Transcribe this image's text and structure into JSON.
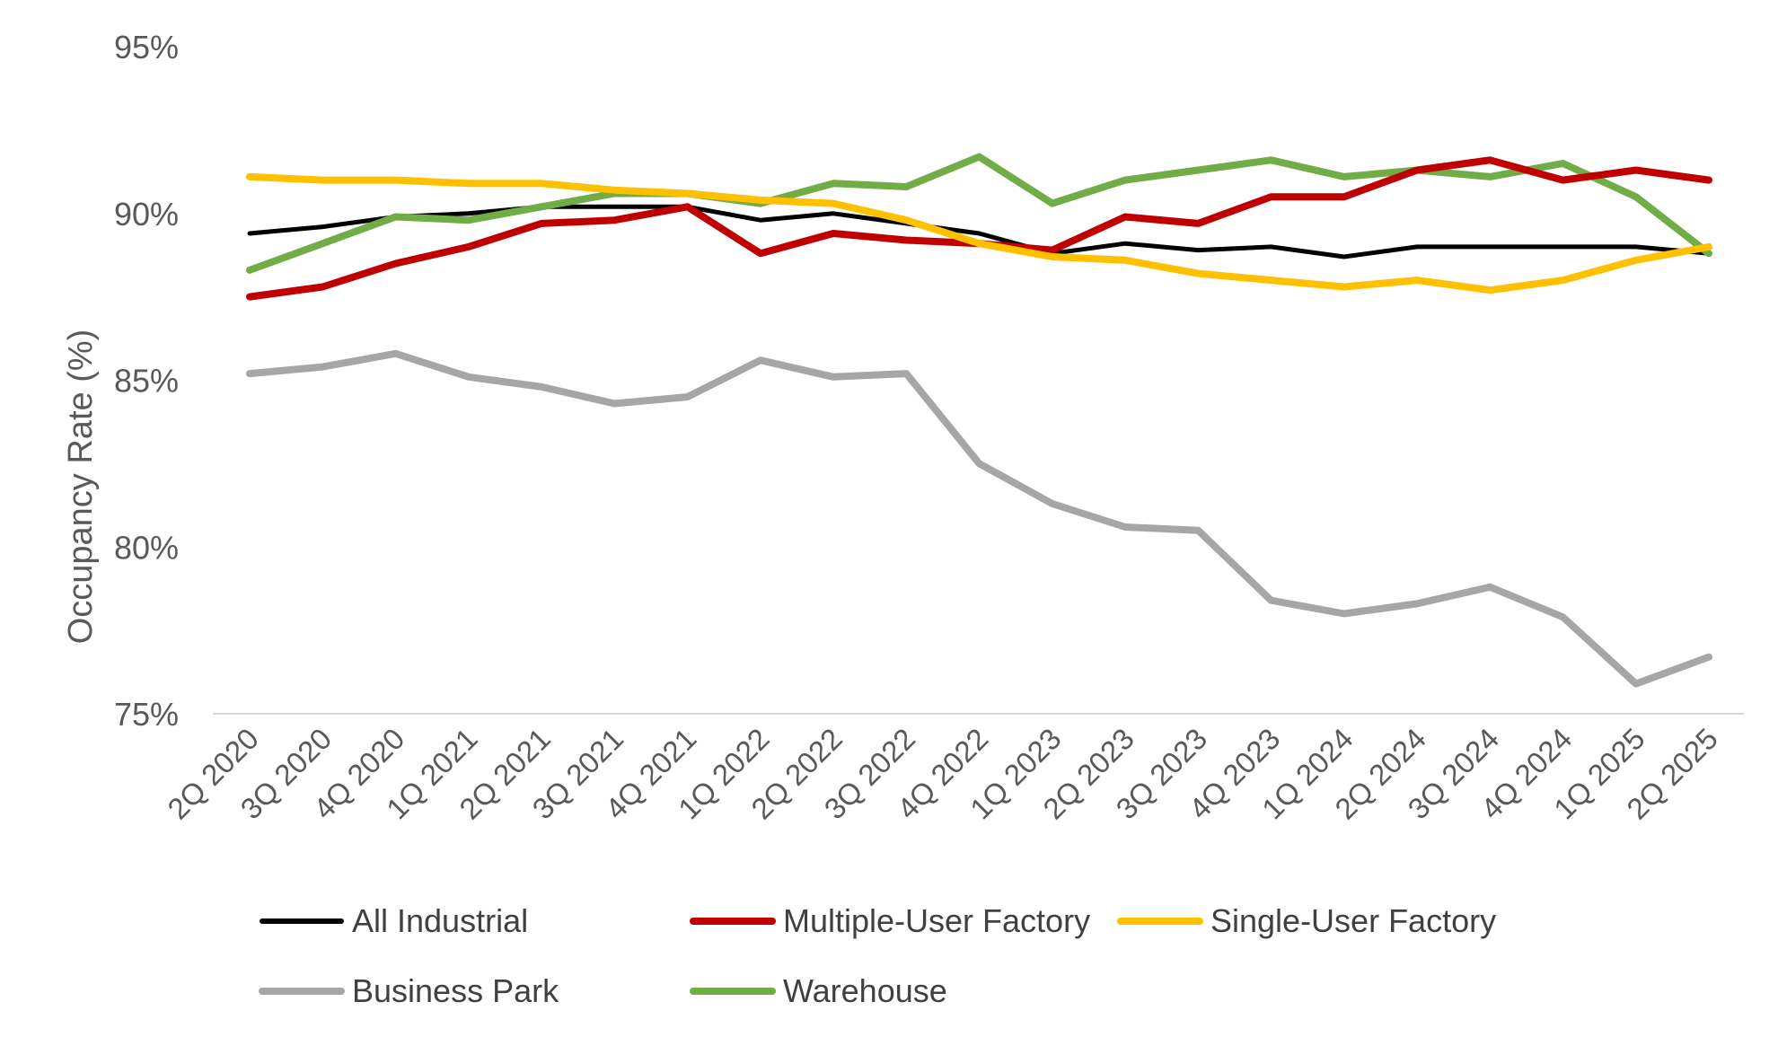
{
  "chart_data": {
    "type": "line",
    "title": "",
    "xlabel": "",
    "ylabel": "Occupancy Rate (%)",
    "ylim": [
      75,
      95
    ],
    "yticks": [
      75,
      80,
      85,
      90,
      95
    ],
    "ytick_labels": [
      "75%",
      "80%",
      "85%",
      "90%",
      "95%"
    ],
    "grid": false,
    "legend_position": "bottom",
    "categories": [
      "2Q 2020",
      "3Q 2020",
      "4Q 2020",
      "1Q 2021",
      "2Q 2021",
      "3Q 2021",
      "4Q 2021",
      "1Q 2022",
      "2Q 2022",
      "3Q 2022",
      "4Q 2022",
      "1Q 2023",
      "2Q 2023",
      "3Q 2023",
      "4Q 2023",
      "1Q 2024",
      "2Q 2024",
      "3Q 2024",
      "4Q 2024",
      "1Q 2025",
      "2Q 2025"
    ],
    "series": [
      {
        "name": "All Industrial",
        "color": "#000000",
        "values": [
          89.4,
          89.6,
          89.9,
          90.0,
          90.2,
          90.2,
          90.2,
          89.8,
          90.0,
          89.7,
          89.4,
          88.8,
          89.1,
          88.9,
          89.0,
          88.7,
          89.0,
          89.0,
          89.0,
          89.0,
          88.8
        ]
      },
      {
        "name": "Multiple-User Factory",
        "color": "#C00000",
        "values": [
          87.5,
          87.8,
          88.5,
          89.0,
          89.7,
          89.8,
          90.2,
          88.8,
          89.4,
          89.2,
          89.1,
          88.9,
          89.9,
          89.7,
          90.5,
          90.5,
          91.3,
          91.6,
          91.0,
          91.3,
          91.0
        ]
      },
      {
        "name": "Single-User Factory",
        "color": "#FFC000",
        "values": [
          91.1,
          91.0,
          91.0,
          90.9,
          90.9,
          90.7,
          90.6,
          90.4,
          90.3,
          89.8,
          89.1,
          88.7,
          88.6,
          88.2,
          88.0,
          87.8,
          88.0,
          87.7,
          88.0,
          88.6,
          89.0
        ]
      },
      {
        "name": "Business Park",
        "color": "#A6A6A6",
        "values": [
          85.2,
          85.4,
          85.8,
          85.1,
          84.8,
          84.3,
          84.5,
          85.6,
          85.1,
          85.2,
          82.5,
          81.3,
          80.6,
          80.5,
          78.4,
          78.0,
          78.3,
          78.8,
          77.9,
          75.9,
          76.7
        ]
      },
      {
        "name": "Warehouse",
        "color": "#70AD47",
        "values": [
          88.3,
          89.1,
          89.9,
          89.8,
          90.2,
          90.6,
          90.6,
          90.3,
          90.9,
          90.8,
          91.7,
          90.3,
          91.0,
          91.3,
          91.6,
          91.1,
          91.3,
          91.1,
          91.5,
          90.5,
          88.8
        ]
      }
    ]
  }
}
